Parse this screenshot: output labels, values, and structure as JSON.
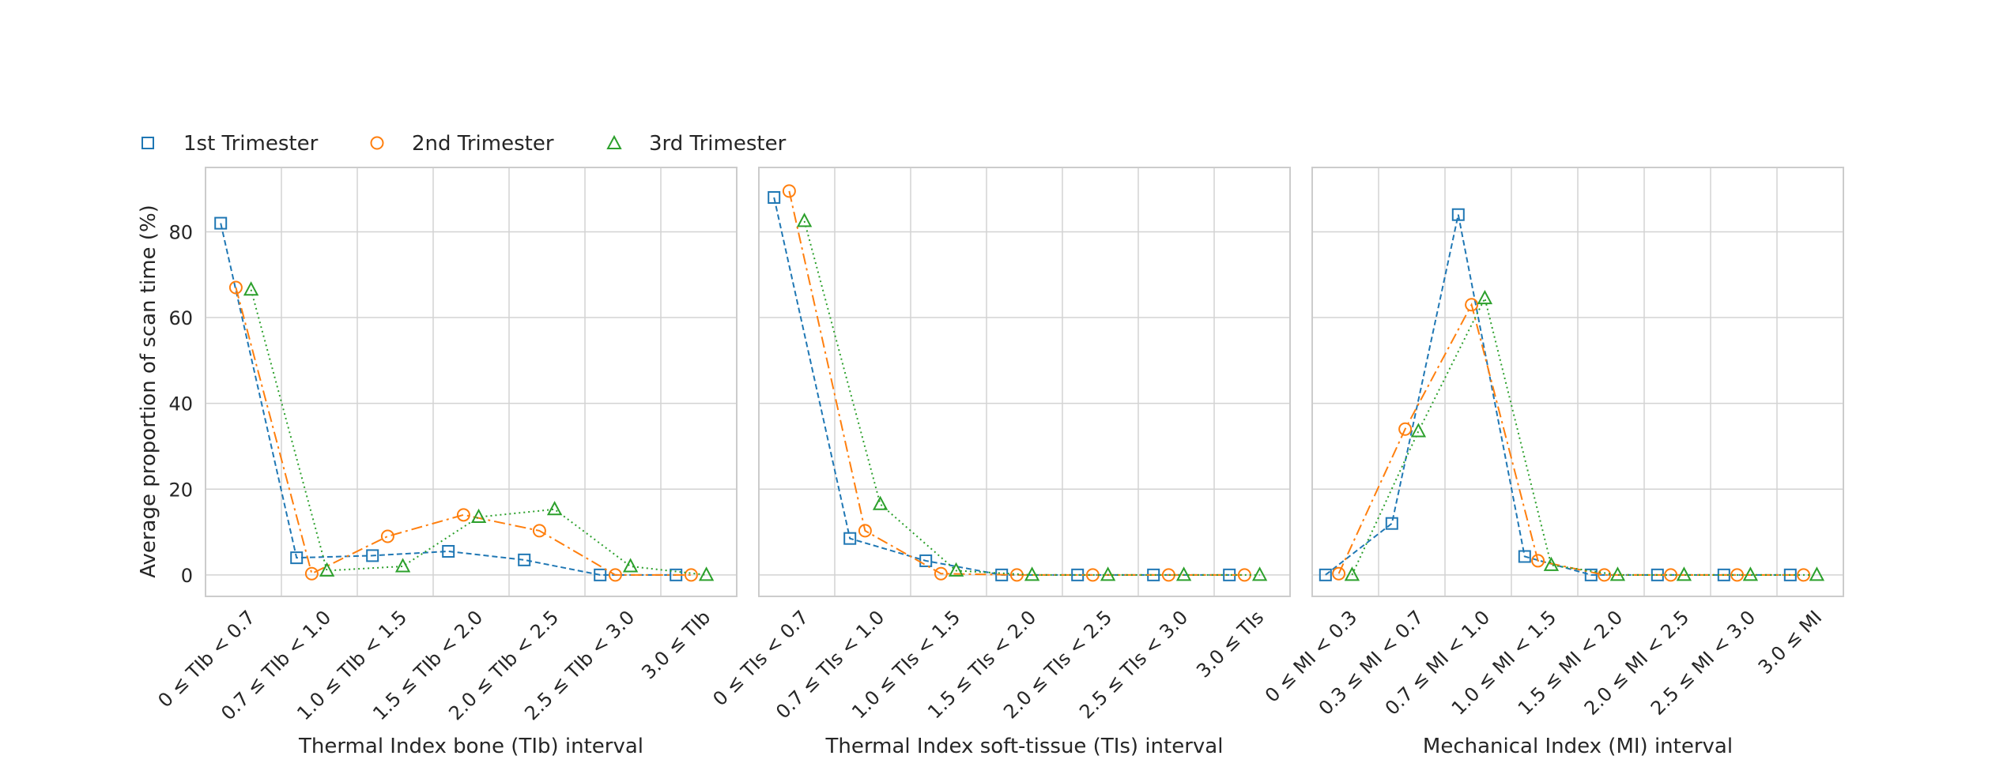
{
  "legend": {
    "placement": "top-left",
    "items": [
      {
        "label": "1st Trimester",
        "marker": "square",
        "color": "#1f77b4"
      },
      {
        "label": "2nd Trimester",
        "marker": "circle",
        "color": "#ff7f0e"
      },
      {
        "label": "3rd Trimester",
        "marker": "triangle",
        "color": "#2ca02c"
      }
    ]
  },
  "chart_data": [
    {
      "type": "line",
      "xlabel": "Thermal Index bone (TIb) interval",
      "ylabel": "Average proportion of scan time (%)",
      "ylim": [
        -5,
        95
      ],
      "yticks": [
        0,
        20,
        40,
        60,
        80
      ],
      "grid": true,
      "categories": [
        "0 ≤ TIb < 0.7",
        "0.7 ≤ TIb < 1.0",
        "1.0 ≤ TIb < 1.5",
        "1.5 ≤ TIb < 2.0",
        "2.0 ≤ TIb < 2.5",
        "2.5 ≤ TIb < 3.0",
        "3.0 ≤ TIb"
      ],
      "series": [
        {
          "name": "1st Trimester",
          "values": [
            82,
            4,
            4.5,
            5.5,
            3.5,
            0,
            0
          ]
        },
        {
          "name": "2nd Trimester",
          "values": [
            67,
            0.3,
            9,
            14,
            10.3,
            0,
            0
          ]
        },
        {
          "name": "3rd Trimester",
          "values": [
            66.5,
            1,
            2,
            13.5,
            15.3,
            2,
            0
          ]
        }
      ]
    },
    {
      "type": "line",
      "xlabel": "Thermal Index soft-tissue (TIs) interval",
      "ylabel": "",
      "ylim": [
        -5,
        95
      ],
      "yticks": [
        0,
        20,
        40,
        60,
        80
      ],
      "grid": true,
      "categories": [
        "0 ≤ TIs < 0.7",
        "0.7 ≤ TIs < 1.0",
        "1.0 ≤ TIs < 1.5",
        "1.5 ≤ TIs < 2.0",
        "2.0 ≤ TIs < 2.5",
        "2.5 ≤ TIs < 3.0",
        "3.0 ≤ TIs"
      ],
      "series": [
        {
          "name": "1st Trimester",
          "values": [
            88,
            8.5,
            3.3,
            0,
            0,
            0,
            0
          ]
        },
        {
          "name": "2nd Trimester",
          "values": [
            89.5,
            10.3,
            0.3,
            0,
            0,
            0,
            0
          ]
        },
        {
          "name": "3rd Trimester",
          "values": [
            82.5,
            16.5,
            1,
            0,
            0,
            0,
            0
          ]
        }
      ]
    },
    {
      "type": "line",
      "xlabel": "Mechanical Index (MI) interval",
      "ylabel": "",
      "ylim": [
        -5,
        95
      ],
      "yticks": [
        0,
        20,
        40,
        60,
        80
      ],
      "grid": true,
      "categories": [
        "0 ≤ MI < 0.3",
        "0.3 ≤ MI < 0.7",
        "0.7 ≤ MI < 1.0",
        "1.0 ≤ MI < 1.5",
        "1.5 ≤ MI < 2.0",
        "2.0 ≤ MI < 2.5",
        "2.5 ≤ MI < 3.0",
        "3.0 ≤ MI"
      ],
      "series": [
        {
          "name": "1st Trimester",
          "values": [
            0,
            12,
            84,
            4.3,
            0,
            0,
            0,
            0
          ]
        },
        {
          "name": "2nd Trimester",
          "values": [
            0.3,
            34,
            63,
            3.3,
            0,
            0,
            0,
            0
          ]
        },
        {
          "name": "3rd Trimester",
          "values": [
            0,
            33.5,
            64.5,
            2.3,
            0,
            0,
            0,
            0
          ]
        }
      ]
    }
  ]
}
